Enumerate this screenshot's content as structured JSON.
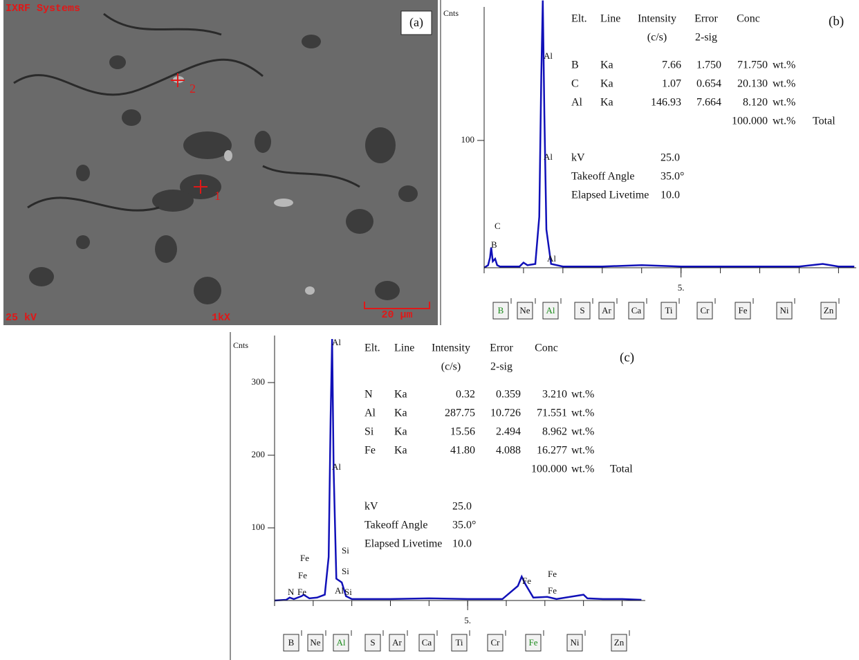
{
  "panel_a": {
    "label": "(a)",
    "header": "IXRF Systems",
    "voltage": "25 kV",
    "magnification": "1kX",
    "scale_bar": "20 µm",
    "points": [
      "1",
      "2"
    ]
  },
  "chart_data": [
    {
      "type": "line",
      "label": "(b)",
      "y_label": "Cnts",
      "color": "#1010b8",
      "x": [
        0,
        0.1,
        0.15,
        0.18,
        0.22,
        0.28,
        0.33,
        0.4,
        0.9,
        1.0,
        1.1,
        1.3,
        1.4,
        1.45,
        1.49,
        1.53,
        1.58,
        1.7,
        2.0,
        3.0,
        4.0,
        5.0,
        6.0,
        7.0,
        8.0,
        8.6,
        9.0,
        9.4
      ],
      "values": [
        0,
        2,
        8,
        16,
        5,
        7,
        2,
        1,
        1,
        4,
        2,
        3,
        40,
        150,
        210,
        120,
        30,
        3,
        1,
        1,
        2,
        1,
        1,
        1,
        1,
        3,
        1,
        1
      ],
      "xlim": [
        0,
        9.45
      ],
      "ylim": [
        0,
        200
      ],
      "yticks": [
        100
      ],
      "xticks": [
        {
          "value": 5,
          "label": "5."
        }
      ],
      "peak_labels": [
        "B",
        "C",
        "Al",
        "Al",
        "Al"
      ],
      "table": {
        "columns": [
          [
            "Elt."
          ],
          [
            "Line"
          ],
          [
            "Intensity",
            "(c/s)"
          ],
          [
            "Error",
            "2-sig"
          ],
          [
            "Conc"
          ]
        ],
        "rows": [
          [
            "B",
            "Ka",
            "7.66",
            "1.750",
            "71.750",
            "wt.%"
          ],
          [
            "C",
            "Ka",
            "1.07",
            "0.654",
            "20.130",
            "wt.%"
          ],
          [
            "Al",
            "Ka",
            "146.93",
            "7.664",
            "8.120",
            "wt.%"
          ]
        ],
        "total": [
          "100.000",
          "wt.%",
          "Total"
        ]
      },
      "settings": [
        [
          "kV",
          "25.0"
        ],
        [
          "Takeoff Angle",
          "35.0°"
        ],
        [
          "Elapsed Livetime",
          "10.0"
        ]
      ],
      "element_buttons": [
        {
          "label": "B",
          "color": "#1a8a1a"
        },
        {
          "label": "Ne",
          "color": "#111"
        },
        {
          "label": "Al",
          "color": "#1a8a1a"
        },
        {
          "label": "S",
          "color": "#111"
        },
        {
          "label": "Ar",
          "color": "#111"
        },
        {
          "label": "Ca",
          "color": "#111"
        },
        {
          "label": "Ti",
          "color": "#111"
        },
        {
          "label": "Cr",
          "color": "#111"
        },
        {
          "label": "Fe",
          "color": "#111"
        },
        {
          "label": "Ni",
          "color": "#111"
        },
        {
          "label": "Zn",
          "color": "#111"
        }
      ]
    },
    {
      "type": "line",
      "label": "(c)",
      "y_label": "Cnts",
      "color": "#1010b8",
      "x": [
        0,
        0.3,
        0.39,
        0.5,
        0.7,
        0.75,
        0.9,
        1.1,
        1.3,
        1.4,
        1.45,
        1.49,
        1.53,
        1.6,
        1.74,
        1.85,
        2.0,
        3.0,
        4.0,
        5.0,
        5.9,
        6.3,
        6.4,
        6.5,
        6.7,
        7.06,
        7.3,
        8.0,
        8.1,
        8.5,
        9.0,
        9.5
      ],
      "values": [
        0,
        1,
        4,
        2,
        6,
        8,
        3,
        4,
        8,
        60,
        250,
        360,
        180,
        30,
        25,
        6,
        2,
        2,
        3,
        2,
        2,
        20,
        33,
        22,
        4,
        5,
        2,
        8,
        3,
        2,
        2,
        1
      ],
      "xlim": [
        0,
        9.6
      ],
      "ylim": [
        0,
        360
      ],
      "yticks": [
        100,
        200,
        300
      ],
      "xticks": [
        {
          "value": 5,
          "label": "5."
        }
      ],
      "peak_labels": [
        "Al",
        "Al",
        "Si",
        "Si",
        "Si",
        "Al",
        "Fe",
        "Fe",
        "N",
        "Fe",
        "Fe",
        "Fe",
        "Fe"
      ],
      "table": {
        "columns": [
          [
            "Elt."
          ],
          [
            "Line"
          ],
          [
            "Intensity",
            "(c/s)"
          ],
          [
            "Error",
            "2-sig"
          ],
          [
            "Conc"
          ]
        ],
        "rows": [
          [
            "N",
            "Ka",
            "0.32",
            "0.359",
            "3.210",
            "wt.%"
          ],
          [
            "Al",
            "Ka",
            "287.75",
            "10.726",
            "71.551",
            "wt.%"
          ],
          [
            "Si",
            "Ka",
            "15.56",
            "2.494",
            "8.962",
            "wt.%"
          ],
          [
            "Fe",
            "Ka",
            "41.80",
            "4.088",
            "16.277",
            "wt.%"
          ]
        ],
        "total": [
          "100.000",
          "wt.%",
          "Total"
        ]
      },
      "settings": [
        [
          "kV",
          "25.0"
        ],
        [
          "Takeoff Angle",
          "35.0°"
        ],
        [
          "Elapsed Livetime",
          "10.0"
        ]
      ],
      "element_buttons": [
        {
          "label": "B",
          "color": "#111"
        },
        {
          "label": "Ne",
          "color": "#111"
        },
        {
          "label": "Al",
          "color": "#1a8a1a"
        },
        {
          "label": "S",
          "color": "#111"
        },
        {
          "label": "Ar",
          "color": "#111"
        },
        {
          "label": "Ca",
          "color": "#111"
        },
        {
          "label": "Ti",
          "color": "#111"
        },
        {
          "label": "Cr",
          "color": "#111"
        },
        {
          "label": "Fe",
          "color": "#1a8a1a"
        },
        {
          "label": "Ni",
          "color": "#111"
        },
        {
          "label": "Zn",
          "color": "#111"
        }
      ]
    }
  ]
}
